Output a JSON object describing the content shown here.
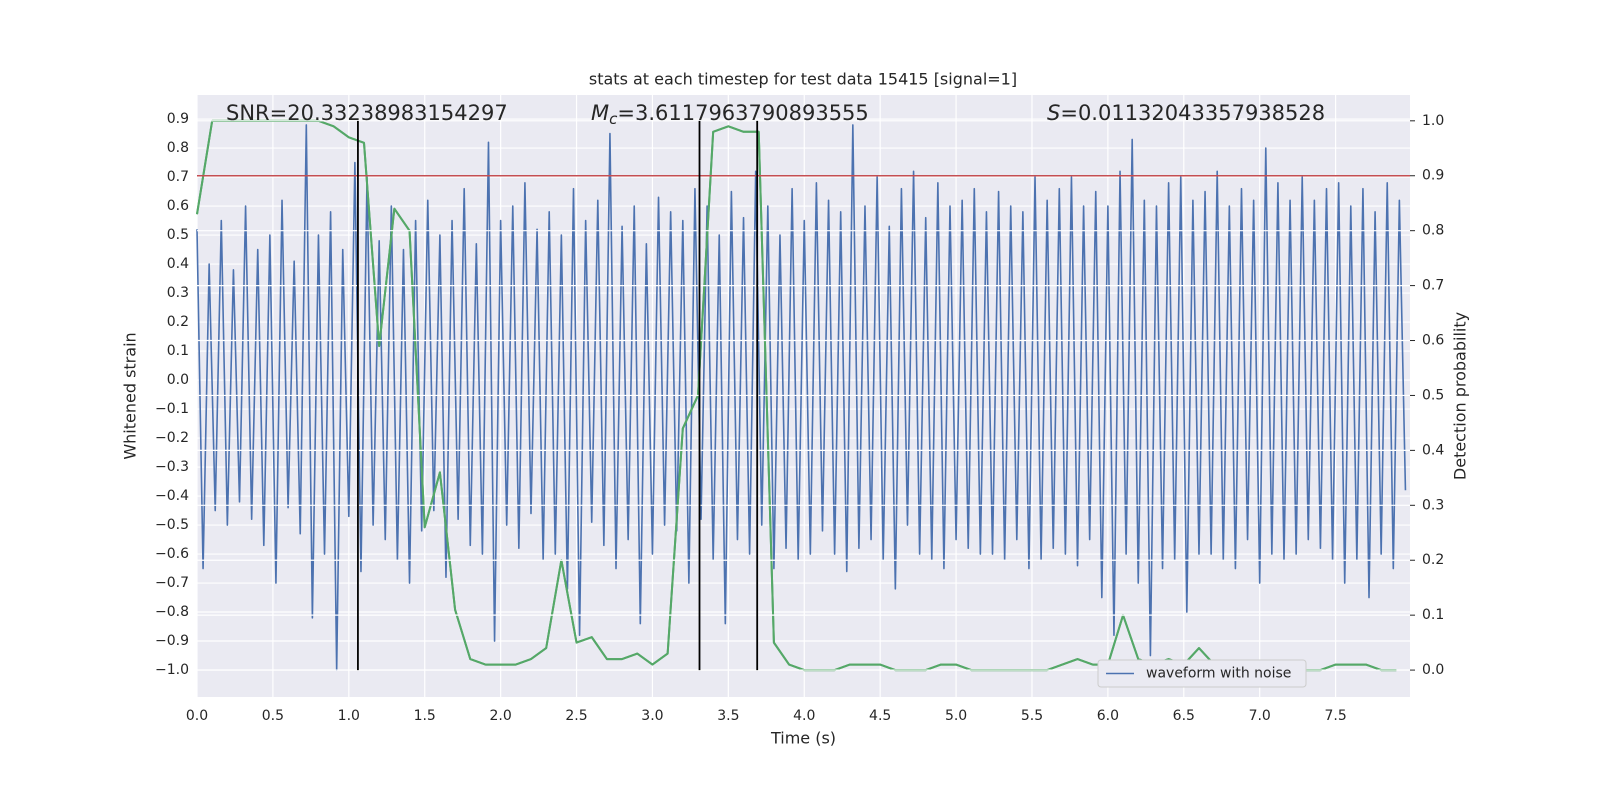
{
  "chart_data": {
    "type": "line",
    "title": "stats at each timestep for test data 15415 [signal=1]",
    "xlabel": "Time (s)",
    "ylabel": "Whitened strain",
    "y2label": "Detection probability",
    "xlim": [
      0,
      7.99
    ],
    "ylim": [
      -1.093,
      0.983
    ],
    "y2lim": [
      -0.049,
      1.047
    ],
    "xticks": [
      {
        "value": 0,
        "label": "0.0"
      },
      0.5,
      {
        "value": 1,
        "label": "1.0"
      },
      1.5,
      {
        "value": 2,
        "label": "2.0"
      },
      2.5,
      {
        "value": 3,
        "label": "3.0"
      },
      3.5,
      {
        "value": 4,
        "label": "4.0"
      },
      4.5,
      {
        "value": 5,
        "label": "5.0"
      },
      5.5,
      {
        "value": 6,
        "label": "6.0"
      },
      6.5,
      {
        "value": 7,
        "label": "7.0"
      },
      7.5
    ],
    "yticks": [
      {
        "value": -1,
        "label": "−1.0"
      },
      {
        "value": -0.9,
        "label": "−0.9"
      },
      {
        "value": -0.8,
        "label": "−0.8"
      },
      {
        "value": -0.7,
        "label": "−0.7"
      },
      {
        "value": -0.6,
        "label": "−0.6"
      },
      {
        "value": -0.5,
        "label": "−0.5"
      },
      {
        "value": -0.4,
        "label": "−0.4"
      },
      {
        "value": -0.3,
        "label": "−0.3"
      },
      {
        "value": -0.2,
        "label": "−0.2"
      },
      {
        "value": -0.1,
        "label": "−0.1"
      },
      {
        "value": 0,
        "label": "0.0"
      },
      0.1,
      0.2,
      0.3,
      0.4,
      0.5,
      0.6,
      0.7,
      0.8,
      0.9
    ],
    "y2ticks": [
      {
        "value": 0,
        "label": "0.0"
      },
      0.1,
      0.2,
      0.3,
      0.4,
      0.5,
      0.6,
      0.7,
      0.8,
      0.9,
      {
        "value": 1,
        "label": "1.0"
      }
    ],
    "grid": true,
    "legend": "lower right",
    "series": [
      {
        "name": "waveform with noise",
        "color": "#4c72b0",
        "x": [
          0,
          0.04,
          0.08,
          0.12,
          0.16,
          0.2,
          0.24,
          0.28,
          0.32,
          0.36,
          0.4,
          0.44,
          0.48,
          0.52,
          0.56,
          0.6,
          0.64,
          0.68,
          0.72,
          0.76,
          0.8,
          0.84,
          0.88,
          0.92,
          0.96,
          1,
          1.04,
          1.08,
          1.12,
          1.16,
          1.2,
          1.24,
          1.28,
          1.32,
          1.36,
          1.4,
          1.44,
          1.48,
          1.52,
          1.56,
          1.6,
          1.64,
          1.68,
          1.72,
          1.76,
          1.8,
          1.84,
          1.88,
          1.92,
          1.96,
          2,
          2.04,
          2.08,
          2.12,
          2.16,
          2.2,
          2.24,
          2.28,
          2.32,
          2.36,
          2.4,
          2.44,
          2.48,
          2.52,
          2.56,
          2.6,
          2.64,
          2.68,
          2.72,
          2.76,
          2.8,
          2.84,
          2.88,
          2.92,
          2.96,
          3,
          3.04,
          3.08,
          3.12,
          3.16,
          3.2,
          3.24,
          3.28,
          3.32,
          3.36,
          3.4,
          3.44,
          3.48,
          3.52,
          3.56,
          3.6,
          3.64,
          3.68,
          3.72,
          3.76,
          3.8,
          3.84,
          3.88,
          3.92,
          3.96,
          4,
          4.04,
          4.08,
          4.12,
          4.16,
          4.2,
          4.24,
          4.28,
          4.32,
          4.36,
          4.4,
          4.44,
          4.48,
          4.52,
          4.56,
          4.6,
          4.64,
          4.68,
          4.72,
          4.76,
          4.8,
          4.84,
          4.88,
          4.92,
          4.96,
          5,
          5.04,
          5.08,
          5.12,
          5.16,
          5.2,
          5.24,
          5.28,
          5.32,
          5.36,
          5.4,
          5.44,
          5.48,
          5.52,
          5.56,
          5.6,
          5.64,
          5.68,
          5.72,
          5.76,
          5.8,
          5.84,
          5.88,
          5.92,
          5.96,
          6,
          6.04,
          6.08,
          6.12,
          6.16,
          6.2,
          6.24,
          6.28,
          6.32,
          6.36,
          6.4,
          6.44,
          6.48,
          6.52,
          6.56,
          6.6,
          6.64,
          6.68,
          6.72,
          6.76,
          6.8,
          6.84,
          6.88,
          6.92,
          6.96,
          7,
          7.04,
          7.08,
          7.12,
          7.16,
          7.2,
          7.24,
          7.28,
          7.32,
          7.36,
          7.4,
          7.44,
          7.48,
          7.52,
          7.56,
          7.6,
          7.64,
          7.68,
          7.72,
          7.76,
          7.8,
          7.84,
          7.88,
          7.92,
          7.96
        ],
        "values": [
          0.52,
          -0.65,
          0.4,
          -0.45,
          0.55,
          -0.5,
          0.38,
          -0.42,
          0.6,
          -0.48,
          0.45,
          -0.57,
          0.5,
          -0.7,
          0.62,
          -0.44,
          0.41,
          -0.53,
          0.88,
          -0.82,
          0.5,
          -0.6,
          0.58,
          -1.0,
          0.45,
          -0.47,
          0.75,
          -0.66,
          0.7,
          -0.5,
          0.48,
          -0.55,
          0.6,
          -0.62,
          0.45,
          -0.7,
          0.55,
          -0.52,
          0.62,
          -0.45,
          0.5,
          -0.68,
          0.55,
          -0.48,
          0.66,
          -0.57,
          0.47,
          -0.6,
          0.82,
          -0.9,
          0.55,
          -0.5,
          0.6,
          -0.58,
          0.68,
          -0.46,
          0.52,
          -0.62,
          0.58,
          -0.6,
          0.5,
          -0.72,
          0.66,
          -0.88,
          0.55,
          -0.49,
          0.62,
          -0.57,
          0.85,
          -0.65,
          0.53,
          -0.55,
          0.6,
          -0.84,
          0.47,
          -0.6,
          0.63,
          -0.5,
          0.58,
          -0.52,
          0.55,
          -0.7,
          0.66,
          -0.48,
          0.6,
          -0.62,
          0.5,
          -0.84,
          0.65,
          -0.55,
          0.56,
          -0.6,
          0.72,
          -0.5,
          0.6,
          -0.65,
          0.5,
          -0.58,
          0.66,
          -0.62,
          0.55,
          -0.6,
          0.68,
          -0.52,
          0.62,
          -0.6,
          0.58,
          -0.66,
          0.88,
          -0.58,
          0.6,
          -0.55,
          0.7,
          -0.62,
          0.53,
          -0.72,
          0.66,
          -0.5,
          0.72,
          -0.6,
          0.56,
          -0.62,
          0.68,
          -0.65,
          0.6,
          -0.55,
          0.62,
          -0.58,
          0.66,
          -0.6,
          0.58,
          -0.6,
          0.65,
          -0.62,
          0.6,
          -0.55,
          0.58,
          -0.65,
          0.7,
          -0.62,
          0.62,
          -0.58,
          0.66,
          -0.6,
          0.7,
          -0.64,
          0.6,
          -0.55,
          0.65,
          -0.75,
          0.6,
          -0.88,
          0.72,
          -0.6,
          0.83,
          -0.7,
          0.62,
          -0.95,
          0.6,
          -0.65,
          0.68,
          -0.62,
          0.7,
          -0.8,
          0.62,
          -0.6,
          0.65,
          -0.6,
          0.72,
          -0.62,
          0.6,
          -0.65,
          0.66,
          -0.55,
          0.62,
          -0.7,
          0.8,
          -0.6,
          0.68,
          -0.62,
          0.62,
          -0.6,
          0.7,
          -0.55,
          0.62,
          -0.58,
          0.66,
          -0.62,
          0.68,
          -0.7,
          0.6,
          -0.62,
          0.66,
          -0.75,
          0.58,
          -0.6,
          0.68,
          -0.65,
          0.62,
          -0.38
        ]
      },
      {
        "color": "#55a868",
        "axis": "y2",
        "x": [
          0,
          0.1,
          0.2,
          0.3,
          0.4,
          0.5,
          0.6,
          0.7,
          0.8,
          0.9,
          1,
          1.1,
          1.2,
          1.3,
          1.4,
          1.5,
          1.6,
          1.7,
          1.8,
          1.9,
          2,
          2.1,
          2.2,
          2.3,
          2.4,
          2.5,
          2.6,
          2.7,
          2.8,
          2.9,
          3,
          3.1,
          3.2,
          3.3,
          3.4,
          3.5,
          3.6,
          3.7,
          3.8,
          3.9,
          4,
          4.1,
          4.2,
          4.3,
          4.4,
          4.5,
          4.6,
          4.7,
          4.8,
          4.9,
          5,
          5.1,
          5.2,
          5.3,
          5.4,
          5.5,
          5.6,
          5.7,
          5.8,
          5.9,
          6,
          6.1,
          6.2,
          6.3,
          6.4,
          6.5,
          6.6,
          6.7,
          6.8,
          6.9,
          7,
          7.1,
          7.2,
          7.3,
          7.4,
          7.5,
          7.6,
          7.7,
          7.8,
          7.9
        ],
        "values": [
          0.83,
          1.0,
          1.0,
          1.0,
          1.0,
          1.0,
          1.0,
          1.0,
          1.0,
          0.99,
          0.97,
          0.96,
          0.59,
          0.84,
          0.8,
          0.26,
          0.36,
          0.11,
          0.02,
          0.01,
          0.01,
          0.01,
          0.02,
          0.04,
          0.2,
          0.05,
          0.06,
          0.02,
          0.02,
          0.03,
          0.01,
          0.03,
          0.44,
          0.5,
          0.98,
          0.99,
          0.98,
          0.98,
          0.05,
          0.01,
          0,
          0,
          0,
          0.01,
          0.01,
          0.01,
          0,
          0,
          0,
          0.01,
          0.01,
          0,
          0,
          0,
          0,
          0,
          0,
          0.01,
          0.02,
          0.01,
          0.01,
          0.1,
          0.02,
          0.01,
          0.02,
          0.01,
          0.04,
          0.01,
          0.01,
          0.01,
          0,
          0,
          0,
          0,
          0,
          0.01,
          0.01,
          0.01,
          0,
          0
        ]
      }
    ],
    "hline": {
      "value": 0.9,
      "axis": "y2",
      "color": "#c44e52"
    },
    "vlines": {
      "x": [
        1.06,
        3.31,
        3.69
      ],
      "ymin": 0,
      "ymax": 1,
      "axis": "y2",
      "color": "#000000"
    },
    "annotations": [
      {
        "text": "SNR=20.33238983154297"
      },
      {
        "italic": "M",
        "sub": "c",
        "text": "=3.6117963790893555"
      },
      {
        "italic": "S",
        "text": "=0.01132043357938528"
      }
    ]
  }
}
